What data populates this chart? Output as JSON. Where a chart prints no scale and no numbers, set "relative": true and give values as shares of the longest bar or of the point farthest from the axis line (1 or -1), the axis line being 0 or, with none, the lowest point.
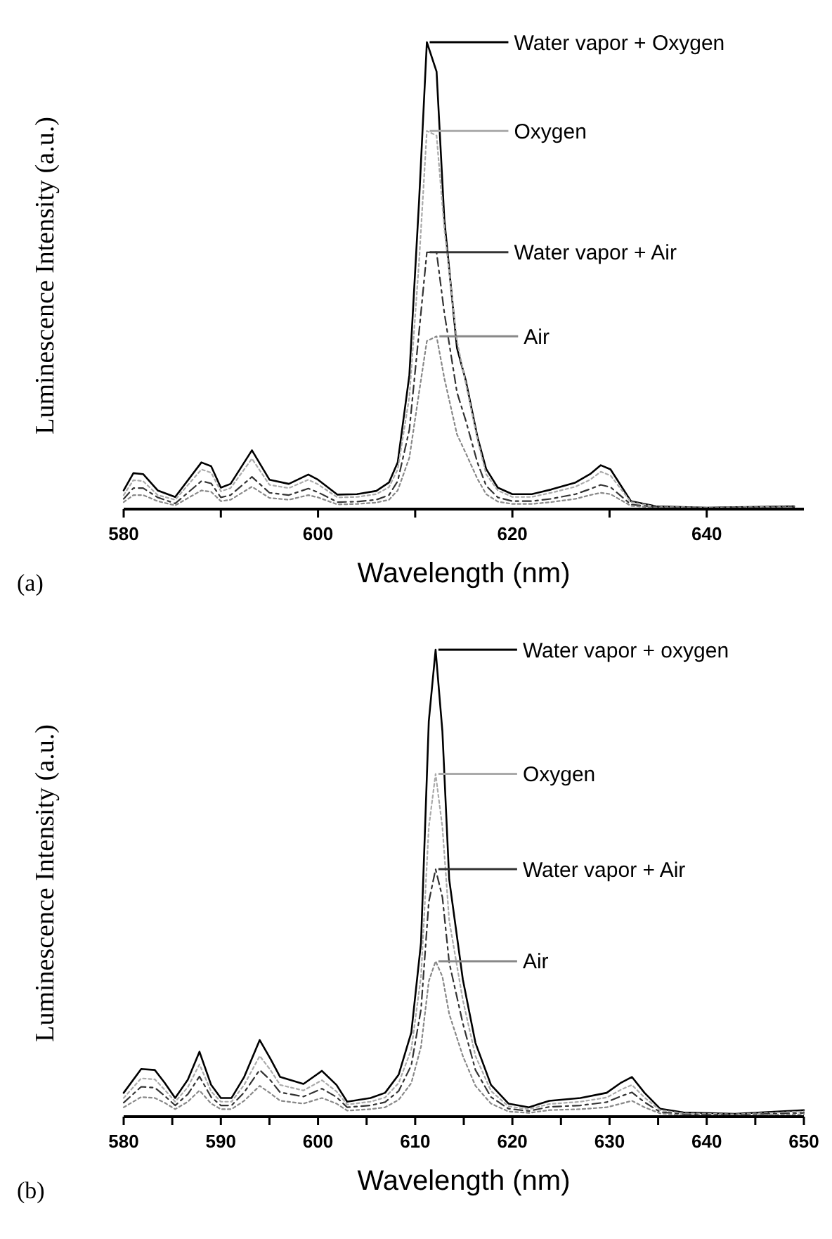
{
  "chart_data": [
    {
      "type": "line",
      "relative": true,
      "xlabel": "Wavelength (nm)",
      "ylabel": "Luminescence Intensity (a.u.)",
      "annotations": [
        "(a)"
      ],
      "xlim": [
        580,
        650
      ],
      "xticks": [
        580,
        {
          "value": 590,
          "label": null
        },
        600,
        {
          "value": 610,
          "label": null
        },
        620,
        {
          "value": 630,
          "label": null
        },
        640
      ],
      "legend": "right",
      "x": [
        580,
        581,
        582,
        583.5,
        585.3,
        588,
        589,
        590,
        591,
        593.2,
        595,
        597,
        599,
        600,
        602,
        604,
        606,
        607.3,
        608.2,
        609.4,
        610.4,
        611.2,
        612.2,
        613,
        614.3,
        615.2,
        616.4,
        617.3,
        618.5,
        620,
        622,
        624,
        626.5,
        628,
        629.1,
        630.1,
        632.2,
        634.8,
        640,
        649
      ],
      "series": [
        {
          "name": "Water vapor + Oxygen",
          "color": "#000000",
          "line_style": "solid",
          "values": [
            0.04,
            0.077,
            0.075,
            0.04,
            0.026,
            0.1,
            0.092,
            0.046,
            0.054,
            0.126,
            0.063,
            0.054,
            0.074,
            0.063,
            0.031,
            0.032,
            0.039,
            0.057,
            0.1,
            0.287,
            0.66,
            1.0,
            0.937,
            0.62,
            0.345,
            0.276,
            0.155,
            0.086,
            0.046,
            0.032,
            0.032,
            0.042,
            0.057,
            0.075,
            0.094,
            0.085,
            0.017,
            0.006,
            0.003,
            0.006
          ]
        },
        {
          "name": "Oxygen",
          "color": "#aaaaaa",
          "line_style": "dotted",
          "values": [
            0.03,
            0.062,
            0.06,
            0.03,
            0.02,
            0.085,
            0.078,
            0.038,
            0.045,
            0.108,
            0.052,
            0.045,
            0.063,
            0.053,
            0.025,
            0.026,
            0.032,
            0.047,
            0.085,
            0.24,
            0.53,
            0.81,
            0.8,
            0.6,
            0.36,
            0.27,
            0.15,
            0.075,
            0.04,
            0.026,
            0.026,
            0.035,
            0.048,
            0.063,
            0.08,
            0.072,
            0.015,
            0.005,
            0.003,
            0.005
          ]
        },
        {
          "name": "Water vapor + Air",
          "color": "#333333",
          "line_style": "dashed",
          "values": [
            0.022,
            0.045,
            0.045,
            0.025,
            0.012,
            0.06,
            0.055,
            0.025,
            0.03,
            0.069,
            0.035,
            0.03,
            0.044,
            0.036,
            0.015,
            0.016,
            0.02,
            0.03,
            0.06,
            0.17,
            0.38,
            0.55,
            0.55,
            0.42,
            0.25,
            0.19,
            0.1,
            0.05,
            0.025,
            0.017,
            0.017,
            0.022,
            0.032,
            0.043,
            0.052,
            0.047,
            0.01,
            0.004,
            0.002,
            0.004
          ]
        },
        {
          "name": "Air",
          "color": "#888888",
          "line_style": "dotted",
          "values": [
            0.015,
            0.03,
            0.03,
            0.017,
            0.008,
            0.04,
            0.037,
            0.017,
            0.02,
            0.048,
            0.024,
            0.02,
            0.03,
            0.025,
            0.01,
            0.011,
            0.014,
            0.02,
            0.04,
            0.11,
            0.25,
            0.36,
            0.37,
            0.28,
            0.16,
            0.12,
            0.065,
            0.032,
            0.016,
            0.011,
            0.011,
            0.015,
            0.022,
            0.03,
            0.035,
            0.032,
            0.007,
            0.003,
            0.002,
            0.003
          ]
        }
      ]
    },
    {
      "type": "line",
      "relative": true,
      "xlabel": "Wavelength (nm)",
      "ylabel": "Luminescence Intensity (a.u.)",
      "annotations": [
        "(b)"
      ],
      "xlim": [
        580,
        650
      ],
      "xticks": [
        580,
        {
          "value": 585,
          "label": null
        },
        590,
        {
          "value": 595,
          "label": null
        },
        600,
        {
          "value": 605,
          "label": null
        },
        610,
        {
          "value": 615,
          "label": null
        },
        620,
        {
          "value": 625,
          "label": null
        },
        630,
        {
          "value": 635,
          "label": null
        },
        640,
        {
          "value": 645,
          "label": null
        },
        650
      ],
      "legend": "right",
      "x": [
        580,
        581.8,
        583.2,
        584.2,
        585.3,
        586.6,
        587.8,
        589,
        590,
        591.1,
        592.4,
        594,
        595.1,
        596.1,
        598.5,
        600.4,
        601.9,
        603,
        605.4,
        606.9,
        608.3,
        609.6,
        610.6,
        611.4,
        612.1,
        612.8,
        613.5,
        614.9,
        616.2,
        617.8,
        619.6,
        621.7,
        623.8,
        627,
        629.7,
        631.2,
        632.3,
        633.6,
        635.2,
        637.6,
        642.9,
        650
      ],
      "series": [
        {
          "name": "Water vapor + oxygen",
          "color": "#000000",
          "line_style": "solid",
          "values": [
            0.051,
            0.102,
            0.1,
            0.073,
            0.04,
            0.079,
            0.139,
            0.068,
            0.04,
            0.04,
            0.085,
            0.164,
            0.124,
            0.085,
            0.07,
            0.098,
            0.068,
            0.032,
            0.04,
            0.051,
            0.09,
            0.18,
            0.373,
            0.847,
            1.0,
            0.825,
            0.508,
            0.294,
            0.158,
            0.068,
            0.028,
            0.02,
            0.034,
            0.04,
            0.051,
            0.073,
            0.085,
            0.051,
            0.017,
            0.009,
            0.006,
            0.014
          ]
        },
        {
          "name": "Oxygen",
          "color": "#aaaaaa",
          "line_style": "dotted",
          "values": [
            0.04,
            0.082,
            0.08,
            0.058,
            0.032,
            0.063,
            0.112,
            0.054,
            0.032,
            0.032,
            0.068,
            0.13,
            0.1,
            0.068,
            0.056,
            0.078,
            0.054,
            0.026,
            0.032,
            0.041,
            0.072,
            0.144,
            0.3,
            0.62,
            0.734,
            0.62,
            0.42,
            0.25,
            0.13,
            0.055,
            0.022,
            0.016,
            0.027,
            0.032,
            0.041,
            0.058,
            0.068,
            0.041,
            0.014,
            0.007,
            0.005,
            0.011
          ]
        },
        {
          "name": "Water vapor + Air",
          "color": "#333333",
          "line_style": "dashed",
          "values": [
            0.03,
            0.064,
            0.062,
            0.045,
            0.024,
            0.048,
            0.086,
            0.042,
            0.024,
            0.024,
            0.052,
            0.1,
            0.078,
            0.052,
            0.043,
            0.06,
            0.042,
            0.02,
            0.024,
            0.031,
            0.055,
            0.11,
            0.23,
            0.46,
            0.53,
            0.47,
            0.33,
            0.2,
            0.1,
            0.042,
            0.017,
            0.012,
            0.021,
            0.024,
            0.031,
            0.044,
            0.052,
            0.031,
            0.01,
            0.005,
            0.004,
            0.008
          ]
        },
        {
          "name": "Air",
          "color": "#888888",
          "line_style": "dotted",
          "values": [
            0.02,
            0.042,
            0.04,
            0.03,
            0.016,
            0.032,
            0.056,
            0.028,
            0.016,
            0.016,
            0.034,
            0.066,
            0.05,
            0.034,
            0.028,
            0.04,
            0.028,
            0.013,
            0.016,
            0.02,
            0.036,
            0.072,
            0.15,
            0.29,
            0.333,
            0.3,
            0.22,
            0.13,
            0.066,
            0.028,
            0.011,
            0.008,
            0.014,
            0.016,
            0.02,
            0.028,
            0.034,
            0.02,
            0.007,
            0.003,
            0.003,
            0.005
          ]
        }
      ]
    }
  ]
}
